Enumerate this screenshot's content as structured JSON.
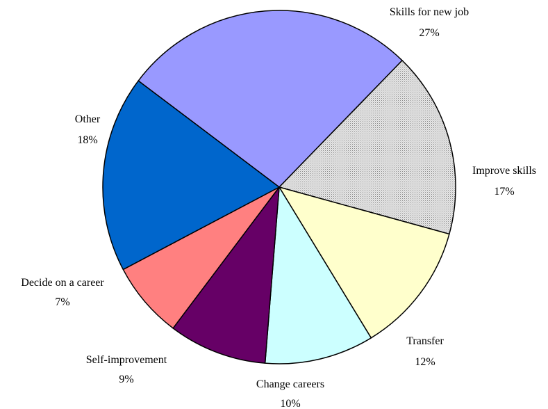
{
  "chart_data": {
    "type": "pie",
    "title": "",
    "start_angle_deg": -143,
    "direction": "clockwise",
    "slices": [
      {
        "label": "Skills for new job",
        "value": 27,
        "value_label": "27%",
        "color": "#9999ff"
      },
      {
        "label": "Improve skills",
        "value": 17,
        "value_label": "17%",
        "color": "#dddddd",
        "pattern": "dotted"
      },
      {
        "label": "Transfer",
        "value": 12,
        "value_label": "12%",
        "color": "#ffffcc"
      },
      {
        "label": "Change careers",
        "value": 10,
        "value_label": "10%",
        "color": "#ccffff"
      },
      {
        "label": "Self-improvement",
        "value": 9,
        "value_label": "9%",
        "color": "#660066"
      },
      {
        "label": "Decide on a career",
        "value": 7,
        "value_label": "7%",
        "color": "#ff8080"
      },
      {
        "label": "Other",
        "value": 18,
        "value_label": "18%",
        "color": "#0066cc"
      }
    ]
  }
}
